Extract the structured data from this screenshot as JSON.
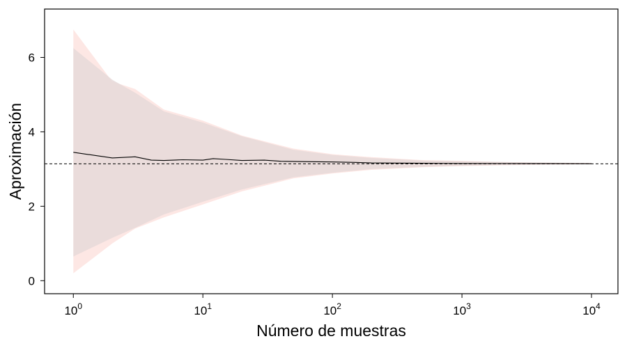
{
  "chart_data": {
    "type": "line",
    "title": "",
    "xlabel": "Número de muestras",
    "ylabel": "Aproximación",
    "xscale": "log",
    "xlim": [
      0.6,
      16000
    ],
    "ylim": [
      -0.35,
      7.3
    ],
    "grid": false,
    "legend": "none",
    "x_ticks": [
      {
        "value": 1,
        "base": "10",
        "exp": "0"
      },
      {
        "value": 10,
        "base": "10",
        "exp": "1"
      },
      {
        "value": 100,
        "base": "10",
        "exp": "2"
      },
      {
        "value": 1000,
        "base": "10",
        "exp": "3"
      },
      {
        "value": 10000,
        "base": "10",
        "exp": "4"
      }
    ],
    "y_ticks": [
      "0",
      "2",
      "4",
      "6"
    ],
    "reference_line": {
      "y": 3.14159,
      "style": "dashed",
      "color": "#000000"
    },
    "bands": [
      {
        "color": "#fde7e4",
        "x": [
          1,
          2,
          3,
          5,
          10,
          20,
          50,
          100,
          200,
          500,
          1000,
          2000,
          5000,
          10000
        ],
        "upper": [
          6.75,
          5.35,
          5.15,
          4.6,
          4.3,
          3.9,
          3.55,
          3.4,
          3.32,
          3.24,
          3.22,
          3.19,
          3.17,
          3.16
        ],
        "lower": [
          0.2,
          1.0,
          1.4,
          1.7,
          2.05,
          2.4,
          2.75,
          2.88,
          2.98,
          3.05,
          3.08,
          3.1,
          3.12,
          3.13
        ]
      },
      {
        "color": "#e6d9d9",
        "x": [
          1,
          2,
          3,
          5,
          10,
          20,
          50,
          100,
          200,
          500,
          1000,
          2000,
          5000,
          10000
        ],
        "upper": [
          6.25,
          5.4,
          5.05,
          4.55,
          4.25,
          3.88,
          3.52,
          3.38,
          3.3,
          3.23,
          3.21,
          3.19,
          3.16,
          3.155
        ],
        "lower": [
          0.65,
          1.15,
          1.42,
          1.78,
          2.12,
          2.45,
          2.78,
          2.9,
          3.0,
          3.06,
          3.09,
          3.11,
          3.125,
          3.135
        ]
      }
    ],
    "series": [
      {
        "color": "#000000",
        "x": [
          1,
          1.5,
          2,
          3,
          4,
          5,
          7,
          10,
          12,
          15,
          20,
          30,
          40,
          60,
          100,
          150,
          200,
          300,
          500,
          1000,
          2000,
          5000,
          10000
        ],
        "y": [
          3.45,
          3.36,
          3.3,
          3.33,
          3.24,
          3.23,
          3.25,
          3.24,
          3.28,
          3.26,
          3.23,
          3.24,
          3.21,
          3.2,
          3.19,
          3.18,
          3.165,
          3.16,
          3.155,
          3.15,
          3.148,
          3.145,
          3.142
        ]
      }
    ]
  }
}
